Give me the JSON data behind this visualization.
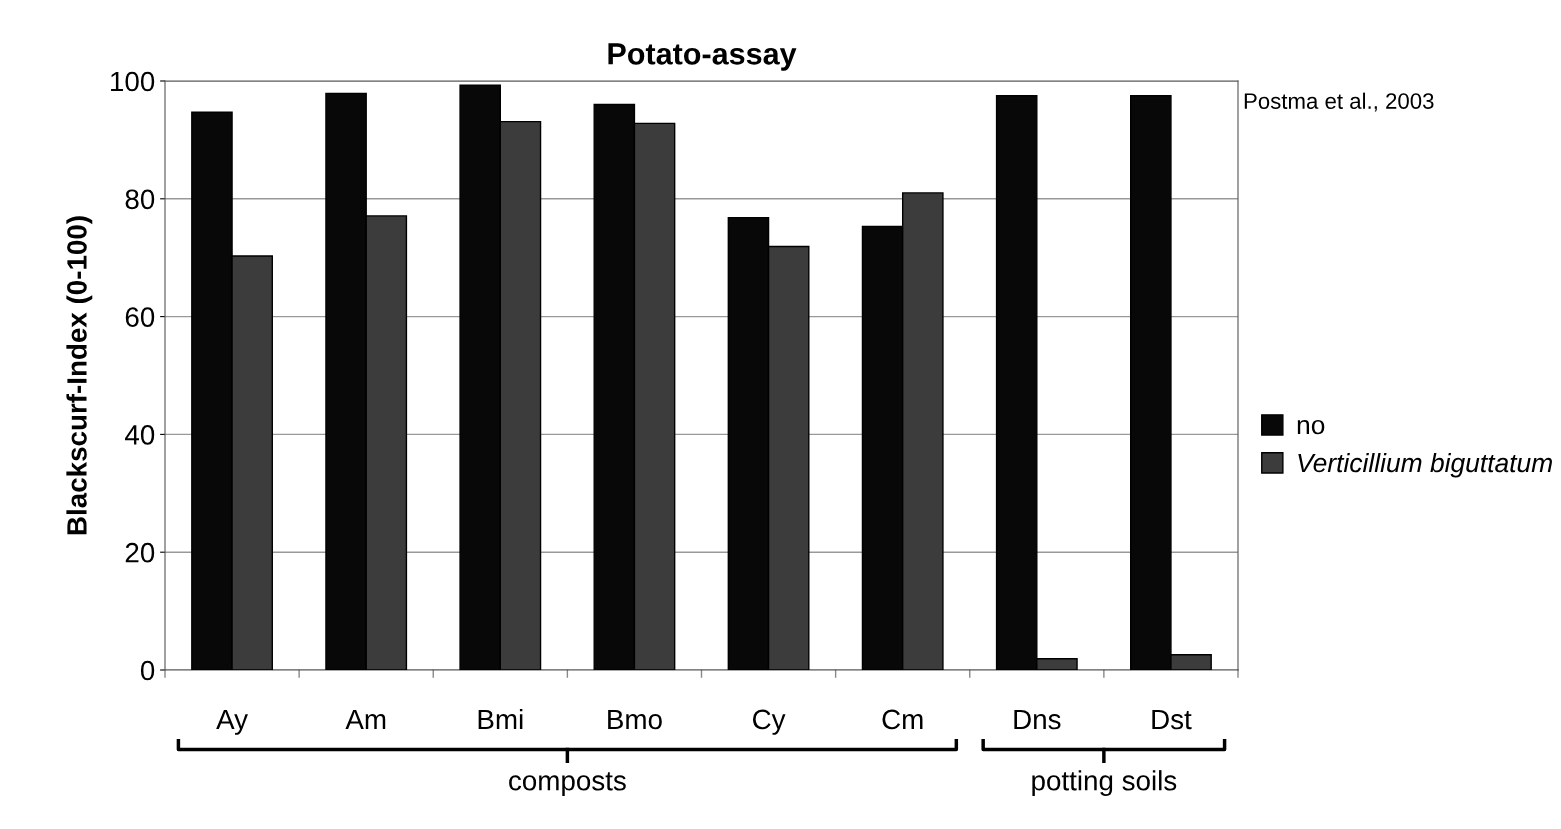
{
  "chart_data": {
    "type": "bar",
    "title": "Potato-assay",
    "ylabel": "Blackscurf-Index (0-100)",
    "categories": [
      "Ay",
      "Am",
      "Bmi",
      "Bmo",
      "Cy",
      "Cm",
      "Dns",
      "Dst"
    ],
    "series": [
      {
        "name": "no",
        "color": "#080808",
        "values": [
          94.7,
          97.9,
          99.3,
          96.0,
          76.8,
          75.3,
          97.5,
          97.5
        ]
      },
      {
        "name": "Verticillium biguttatum",
        "color": "#3c3c3c",
        "values": [
          70.3,
          77.1,
          93.1,
          92.8,
          71.9,
          81.0,
          1.9,
          2.6
        ]
      }
    ],
    "ylim": [
      0,
      100
    ],
    "yticks": [
      0,
      20,
      40,
      60,
      80,
      100
    ],
    "grid": "y",
    "legend": "right",
    "annotations": [
      "Postma et al., 2003",
      "composts",
      "potting soils"
    ]
  }
}
